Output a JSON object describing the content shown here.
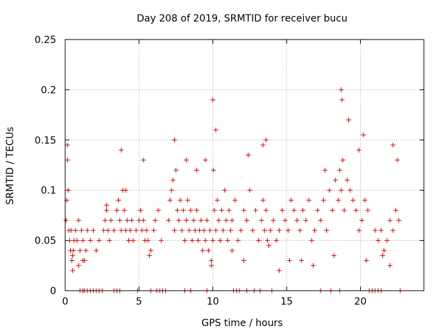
{
  "chart_data": {
    "type": "scatter",
    "title": "Day 208 of 2019, SRMTID for receiver bucu",
    "xlabel": "GPS time / hours",
    "ylabel": "SRMTID / TECUs",
    "xlim": [
      0,
      24.3
    ],
    "ylim": [
      0,
      0.25
    ],
    "x_ticks": [
      0,
      5,
      10,
      15,
      20
    ],
    "x_tick_labels": [
      "0",
      "5",
      "10",
      "15",
      "20"
    ],
    "y_ticks": [
      0,
      0.05,
      0.1,
      0.15,
      0.2,
      0.25
    ],
    "y_tick_labels": [
      "0",
      "0.05",
      "0.1",
      "0.15",
      "0.2",
      "0.25"
    ],
    "grid": true,
    "marker": "+",
    "series_color": "#e00000",
    "series": [
      {
        "name": "SRMTID",
        "x": [
          0.05,
          0.1,
          0.15,
          0.2,
          0.25,
          0.3,
          0.35,
          0.4,
          0.45,
          0.5,
          0.55,
          0.6,
          0.7,
          0.8,
          0.9,
          1.0,
          1.1,
          1.2,
          1.3,
          1.4,
          1.5,
          1.7,
          1.9,
          2.1,
          2.3,
          2.6,
          2.7,
          2.8,
          2.9,
          3.0,
          3.1,
          3.3,
          3.5,
          3.6,
          3.7,
          3.8,
          3.9,
          4.0,
          4.1,
          4.2,
          4.3,
          4.4,
          4.5,
          4.6,
          4.8,
          5.0,
          5.1,
          5.2,
          5.3,
          5.4,
          5.5,
          5.6,
          5.8,
          6.0,
          6.1,
          6.3,
          6.5,
          7.0,
          7.1,
          7.2,
          7.3,
          7.4,
          7.5,
          7.6,
          7.7,
          7.8,
          7.9,
          8.0,
          8.1,
          8.2,
          8.3,
          8.4,
          8.5,
          8.6,
          8.7,
          8.8,
          8.9,
          9.0,
          9.1,
          9.2,
          9.3,
          9.4,
          9.5,
          9.6,
          9.7,
          9.8,
          9.9,
          10.0,
          10.05,
          10.1,
          10.2,
          10.3,
          10.4,
          10.5,
          10.6,
          10.7,
          10.8,
          10.9,
          11.0,
          11.1,
          11.2,
          11.3,
          11.5,
          11.7,
          11.9,
          12.1,
          12.3,
          12.5,
          12.7,
          12.9,
          13.1,
          13.3,
          13.4,
          13.5,
          13.6,
          13.7,
          13.9,
          14.1,
          14.3,
          14.5,
          14.7,
          14.9,
          15.1,
          15.3,
          15.5,
          15.7,
          15.9,
          16.1,
          16.3,
          16.5,
          16.7,
          16.9,
          17.1,
          17.3,
          17.5,
          17.7,
          17.9,
          18.1,
          18.3,
          18.5,
          18.6,
          18.7,
          18.8,
          18.9,
          19.1,
          19.3,
          19.5,
          19.7,
          19.9,
          20.1,
          20.3,
          20.5,
          21.0,
          21.2,
          21.4,
          21.6,
          21.8,
          22.0,
          22.2,
          22.4,
          22.6,
          0.15,
          0.5,
          0.9,
          1.2,
          2.8,
          3.8,
          4.1,
          5.3,
          5.7,
          7.4,
          8.2,
          8.9,
          9.5,
          9.9,
          10.0,
          10.2,
          11.3,
          12.1,
          12.4,
          13.4,
          13.6,
          13.8,
          14.5,
          15.2,
          16.0,
          16.8,
          17.6,
          18.2,
          18.7,
          18.75,
          19.2,
          19.9,
          20.2,
          20.4,
          21.5,
          22.0,
          22.2,
          22.5,
          1.0,
          1.2,
          1.3,
          1.5,
          1.7,
          1.9,
          2.1,
          2.3,
          2.5,
          3.3,
          3.5,
          3.7,
          4.9,
          5.8,
          6.2,
          6.4,
          6.6,
          6.8,
          8.1,
          8.5,
          9.6,
          11.4,
          11.6,
          11.8,
          12.3,
          12.8,
          13.2,
          14.0,
          17.3,
          18.0,
          18.6,
          20.6,
          20.8,
          21.0,
          21.2,
          21.4,
          22.7
        ],
        "values": [
          0.07,
          0.09,
          0.13,
          0.1,
          0.06,
          0.05,
          0.04,
          0.06,
          0.03,
          0.02,
          0.04,
          0.05,
          0.06,
          0.05,
          0.07,
          0.04,
          0.06,
          0.05,
          0.03,
          0.04,
          0.06,
          0.05,
          0.06,
          0.04,
          0.05,
          0.06,
          0.07,
          0.08,
          0.06,
          0.05,
          0.07,
          0.06,
          0.08,
          0.09,
          0.07,
          0.06,
          0.1,
          0.08,
          0.06,
          0.07,
          0.05,
          0.06,
          0.07,
          0.05,
          0.06,
          0.07,
          0.08,
          0.06,
          0.07,
          0.05,
          0.06,
          0.05,
          0.04,
          0.06,
          0.07,
          0.08,
          0.05,
          0.07,
          0.09,
          0.1,
          0.11,
          0.06,
          0.12,
          0.08,
          0.07,
          0.09,
          0.06,
          0.08,
          0.05,
          0.07,
          0.09,
          0.06,
          0.08,
          0.05,
          0.07,
          0.06,
          0.08,
          0.05,
          0.06,
          0.07,
          0.04,
          0.06,
          0.05,
          0.07,
          0.04,
          0.06,
          0.03,
          0.05,
          0.12,
          0.08,
          0.06,
          0.09,
          0.07,
          0.05,
          0.08,
          0.06,
          0.1,
          0.07,
          0.05,
          0.08,
          0.06,
          0.07,
          0.09,
          0.05,
          0.06,
          0.08,
          0.07,
          0.1,
          0.06,
          0.08,
          0.05,
          0.07,
          0.09,
          0.06,
          0.08,
          0.05,
          0.06,
          0.07,
          0.05,
          0.06,
          0.08,
          0.07,
          0.06,
          0.09,
          0.08,
          0.07,
          0.06,
          0.08,
          0.07,
          0.09,
          0.05,
          0.06,
          0.08,
          0.07,
          0.09,
          0.06,
          0.1,
          0.08,
          0.11,
          0.09,
          0.12,
          0.1,
          0.13,
          0.08,
          0.11,
          0.1,
          0.09,
          0.08,
          0.06,
          0.07,
          0.09,
          0.08,
          0.06,
          0.05,
          0.06,
          0.04,
          0.05,
          0.07,
          0.06,
          0.08,
          0.07,
          0.145,
          0.035,
          0.025,
          0.03,
          0.085,
          0.14,
          0.1,
          0.13,
          0.035,
          0.15,
          0.13,
          0.12,
          0.13,
          0.025,
          0.19,
          0.16,
          0.04,
          0.03,
          0.135,
          0.145,
          0.15,
          0.045,
          0.02,
          0.03,
          0.03,
          0.025,
          0.12,
          0.035,
          0.2,
          0.19,
          0.17,
          0.14,
          0.155,
          0.03,
          0.035,
          0.025,
          0.145,
          0.13,
          0,
          0,
          0,
          0,
          0,
          0,
          0,
          0,
          0,
          0,
          0,
          0,
          0,
          0,
          0,
          0,
          0,
          0,
          0,
          0,
          0,
          0,
          0,
          0,
          0,
          0,
          0,
          0,
          0,
          0,
          0,
          0,
          0,
          0,
          0,
          0,
          0
        ]
      }
    ]
  }
}
